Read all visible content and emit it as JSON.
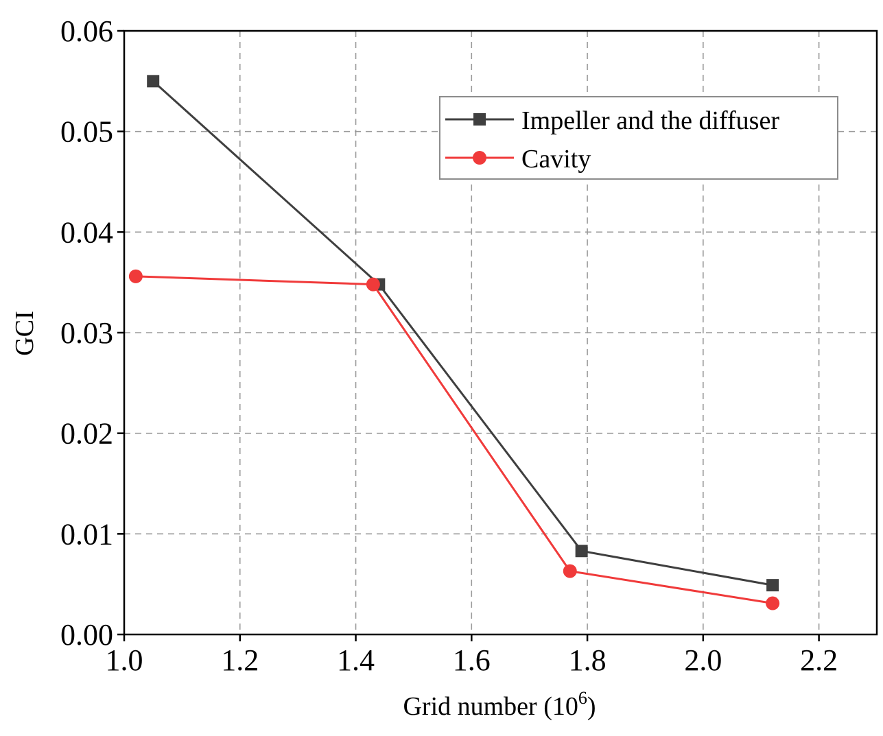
{
  "chart_data": {
    "type": "line",
    "title": "",
    "xlabel": "Grid number (10",
    "xlabel_sup": "6",
    "xlabel_close": ")",
    "ylabel": "GCI",
    "xlim": [
      1.0,
      2.3
    ],
    "ylim": [
      0.0,
      0.06
    ],
    "xticks": [
      1.0,
      1.2,
      1.4,
      1.6,
      1.8,
      2.0,
      2.2
    ],
    "xtick_labels": [
      "1.0",
      "1.2",
      "1.4",
      "1.6",
      "1.8",
      "2.0",
      "2.2"
    ],
    "yticks": [
      0.0,
      0.01,
      0.02,
      0.03,
      0.04,
      0.05,
      0.06
    ],
    "ytick_labels": [
      "0.00",
      "0.01",
      "0.02",
      "0.03",
      "0.04",
      "0.05",
      "0.06"
    ],
    "grid": true,
    "legend_position": "top-right",
    "series": [
      {
        "name": "Impeller and the diffuser",
        "color": "#3f3f3f",
        "marker": "square",
        "x": [
          1.05,
          1.44,
          1.79,
          2.12
        ],
        "values": [
          0.055,
          0.0348,
          0.0083,
          0.0049
        ]
      },
      {
        "name": "Cavity",
        "color": "#f03a3a",
        "marker": "circle",
        "x": [
          1.02,
          1.43,
          1.77,
          2.12
        ],
        "values": [
          0.0356,
          0.0348,
          0.0063,
          0.0031
        ]
      }
    ]
  }
}
